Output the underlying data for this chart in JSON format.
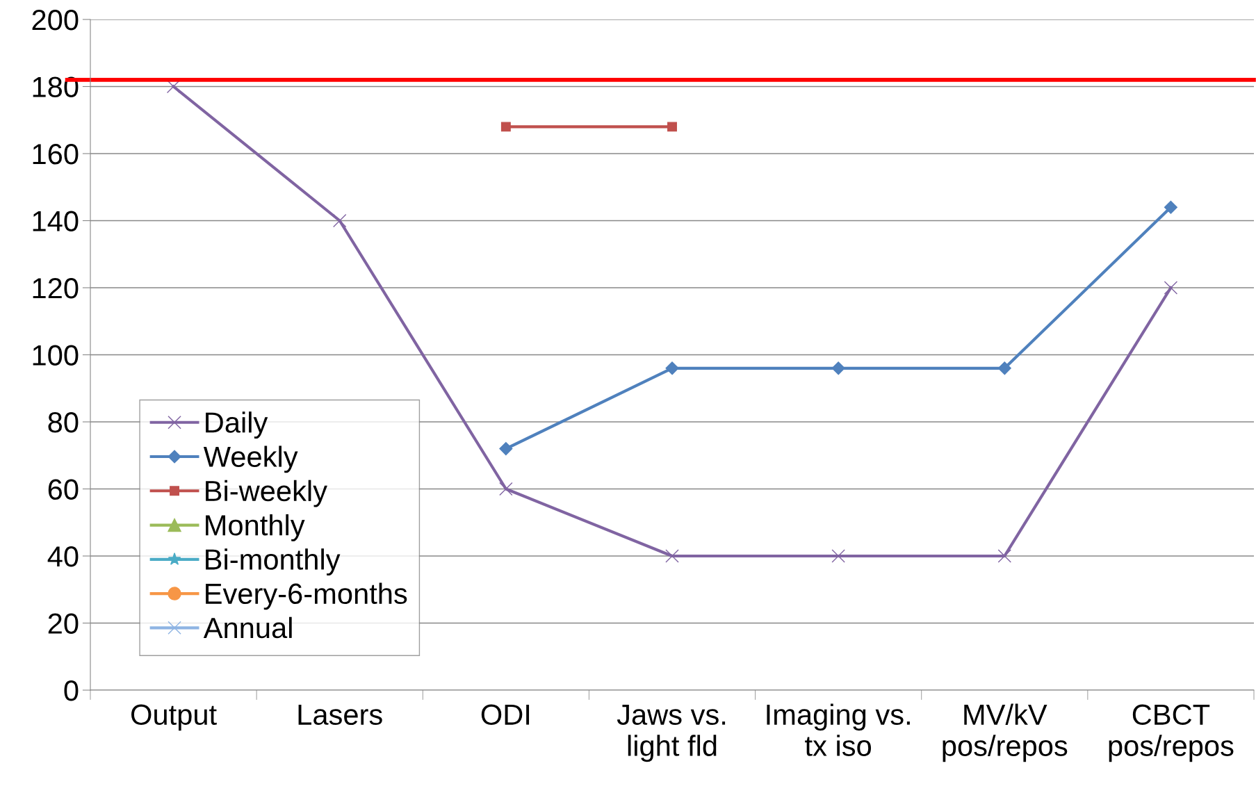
{
  "chart_data": {
    "type": "line",
    "categories": [
      "Output",
      "Lasers",
      "ODI",
      "Jaws vs.\nlight fld",
      "Imaging vs.\ntx iso",
      "MV/kV\npos/repos",
      "CBCT\npos/repos"
    ],
    "series": [
      {
        "name": "Daily",
        "color": "#8064a2",
        "marker": "cross",
        "values": [
          180,
          140,
          60,
          40,
          40,
          40,
          120
        ]
      },
      {
        "name": "Weekly",
        "color": "#4f81bd",
        "marker": "diamond",
        "values": [
          null,
          null,
          72,
          96,
          96,
          96,
          144
        ]
      },
      {
        "name": "Bi-weekly",
        "color": "#c0504d",
        "marker": "square",
        "values": [
          null,
          null,
          168,
          168,
          null,
          null,
          null
        ]
      },
      {
        "name": "Monthly",
        "color": "#9bbb59",
        "marker": "triangle",
        "values": [
          null,
          null,
          null,
          null,
          null,
          null,
          null
        ]
      },
      {
        "name": "Bi-monthly",
        "color": "#4bacc6",
        "marker": "star",
        "values": [
          null,
          null,
          null,
          null,
          null,
          null,
          null
        ]
      },
      {
        "name": "Every-6-months",
        "color": "#f79646",
        "marker": "circle",
        "values": [
          null,
          null,
          null,
          null,
          null,
          null,
          null
        ]
      },
      {
        "name": "Annual",
        "color": "#8eb4e3",
        "marker": "cross",
        "values": [
          null,
          null,
          null,
          null,
          null,
          null,
          null
        ]
      }
    ],
    "ylim": [
      0,
      200
    ],
    "yticks": [
      0,
      20,
      40,
      60,
      80,
      100,
      120,
      140,
      160,
      180,
      200
    ],
    "grid": "y",
    "legend": "bottom left",
    "ref_lines": [
      {
        "axis": "y",
        "value": 182,
        "color": "#ff0000"
      }
    ]
  }
}
